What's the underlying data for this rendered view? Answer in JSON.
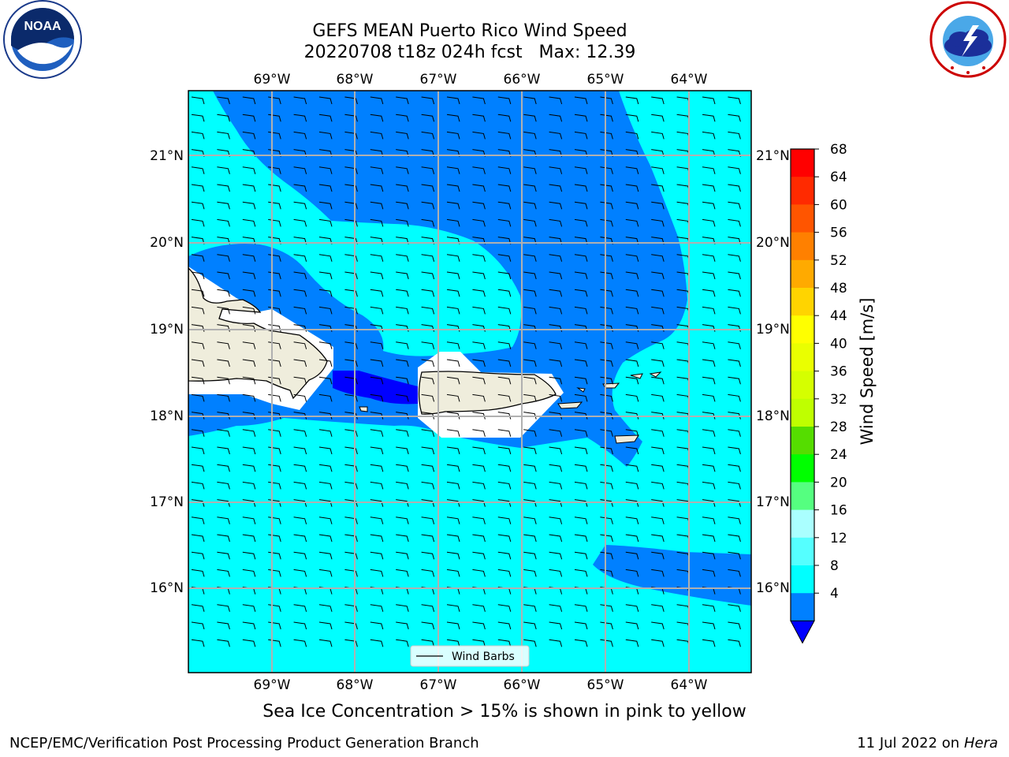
{
  "header": {
    "title_line1": "GEFS MEAN Puerto Rico Wind Speed",
    "title_line2": "20220708 t18z 024h fcst   Max: 12.39"
  },
  "logos": {
    "left": {
      "name": "NOAA",
      "text": "NOAA",
      "ring_text": "NATIONAL OCEANIC AND ATMOSPHERIC ADMINISTRATION · U.S. DEPARTMENT OF COMMERCE"
    },
    "right": {
      "name": "National Weather Service",
      "ring_text": "NATIONAL WEATHER SERVICE"
    }
  },
  "map": {
    "lon_labels": [
      "69°W",
      "68°W",
      "67°W",
      "66°W",
      "65°W",
      "64°W"
    ],
    "lat_labels": [
      "21°N",
      "20°N",
      "19°N",
      "18°N",
      "17°N",
      "16°N"
    ],
    "legend_label": "Wind Barbs",
    "colors": {
      "land": "#efeddc",
      "band_4_8": "#0080ff",
      "band_8_12": "#00ffff",
      "below_4": "#0000ff",
      "grid": "#b0b0b0"
    }
  },
  "colorbar": {
    "label": "Wind Speed [m/s]",
    "ticks": [
      "68",
      "64",
      "60",
      "56",
      "52",
      "48",
      "44",
      "40",
      "36",
      "32",
      "28",
      "24",
      "20",
      "16",
      "12",
      "8",
      "4"
    ],
    "colors_top_down": [
      "#ff0000",
      "#ff2a00",
      "#ff5500",
      "#ff8000",
      "#ffaa00",
      "#ffd400",
      "#ffff00",
      "#eaff00",
      "#d5ff00",
      "#bfff00",
      "#55dd00",
      "#00ff00",
      "#55ff80",
      "#aaffff",
      "#55ffff",
      "#00ffff",
      "#0080ff"
    ],
    "under_color": "#0000ff"
  },
  "footer": {
    "subtitle": "Sea Ice Concentration > 15% is shown in pink to yellow",
    "left": "NCEP/EMC/Verification Post Processing Product Generation Branch",
    "right_prefix": "11 Jul 2022 on ",
    "right_machine": "Hera"
  }
}
